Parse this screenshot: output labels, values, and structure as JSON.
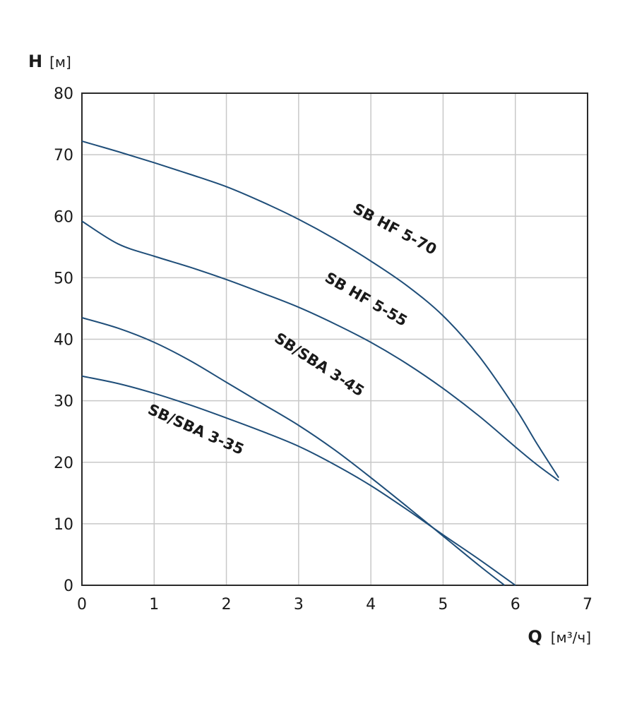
{
  "chart_data": {
    "type": "line",
    "title": "",
    "ylabel": "H",
    "ylabel_unit": "[м]",
    "xlabel": "Q",
    "xlabel_unit": "[м³/ч]",
    "xlim": [
      0,
      7
    ],
    "ylim": [
      0,
      80
    ],
    "xticks": [
      0,
      1,
      2,
      3,
      4,
      5,
      6,
      7
    ],
    "yticks": [
      0,
      10,
      20,
      30,
      40,
      50,
      60,
      70,
      80
    ],
    "grid": true,
    "line_color": "#1f4e79",
    "series": [
      {
        "name": "SB HF 5-70",
        "x": [
          0,
          0.5,
          1,
          1.5,
          2,
          2.5,
          3,
          3.5,
          4,
          4.5,
          5,
          5.5,
          6,
          6.3,
          6.6
        ],
        "y": [
          72.2,
          70.5,
          68.7,
          66.8,
          64.8,
          62.3,
          59.5,
          56.3,
          52.7,
          48.7,
          43.8,
          37.2,
          28.8,
          23.0,
          17.5
        ]
      },
      {
        "name": "SB HF 5-55",
        "x": [
          0,
          0.5,
          1,
          1.5,
          2,
          2.5,
          3,
          3.5,
          4,
          4.5,
          5,
          5.5,
          6,
          6.3,
          6.6
        ],
        "y": [
          59.2,
          55.5,
          53.5,
          51.7,
          49.7,
          47.5,
          45.2,
          42.5,
          39.5,
          36.0,
          32.0,
          27.5,
          22.5,
          19.6,
          17.0
        ]
      },
      {
        "name": "SB/SBA 3-45",
        "x": [
          0,
          0.5,
          1,
          1.5,
          2,
          2.5,
          3,
          3.5,
          4,
          4.5,
          5,
          5.5,
          5.85
        ],
        "y": [
          43.5,
          41.8,
          39.5,
          36.5,
          33.0,
          29.5,
          26.0,
          22.0,
          17.5,
          12.8,
          8.0,
          3.2,
          0
        ]
      },
      {
        "name": "SB/SBA 3-35",
        "x": [
          0,
          0.5,
          1,
          1.5,
          2,
          2.5,
          3,
          3.5,
          4,
          4.5,
          5,
          5.5,
          6
        ],
        "y": [
          34.0,
          32.8,
          31.2,
          29.3,
          27.2,
          25.0,
          22.6,
          19.6,
          16.2,
          12.3,
          8.2,
          4.2,
          0
        ]
      }
    ],
    "labels": [
      {
        "series": "SB HF 5-70",
        "text": "SB HF 5-70",
        "x": 4.3,
        "y": 57.2,
        "angle": 28
      },
      {
        "series": "SB HF 5-55",
        "text": "SB HF 5-55",
        "x": 3.9,
        "y": 45.8,
        "angle": 30
      },
      {
        "series": "SB/SBA 3-45",
        "text": "SB/SBA 3-45",
        "x": 3.25,
        "y": 35.2,
        "angle": 33
      },
      {
        "series": "SB/SBA 3-35",
        "text": "SB/SBA 3-35",
        "x": 1.55,
        "y": 24.6,
        "angle": 24
      }
    ]
  }
}
